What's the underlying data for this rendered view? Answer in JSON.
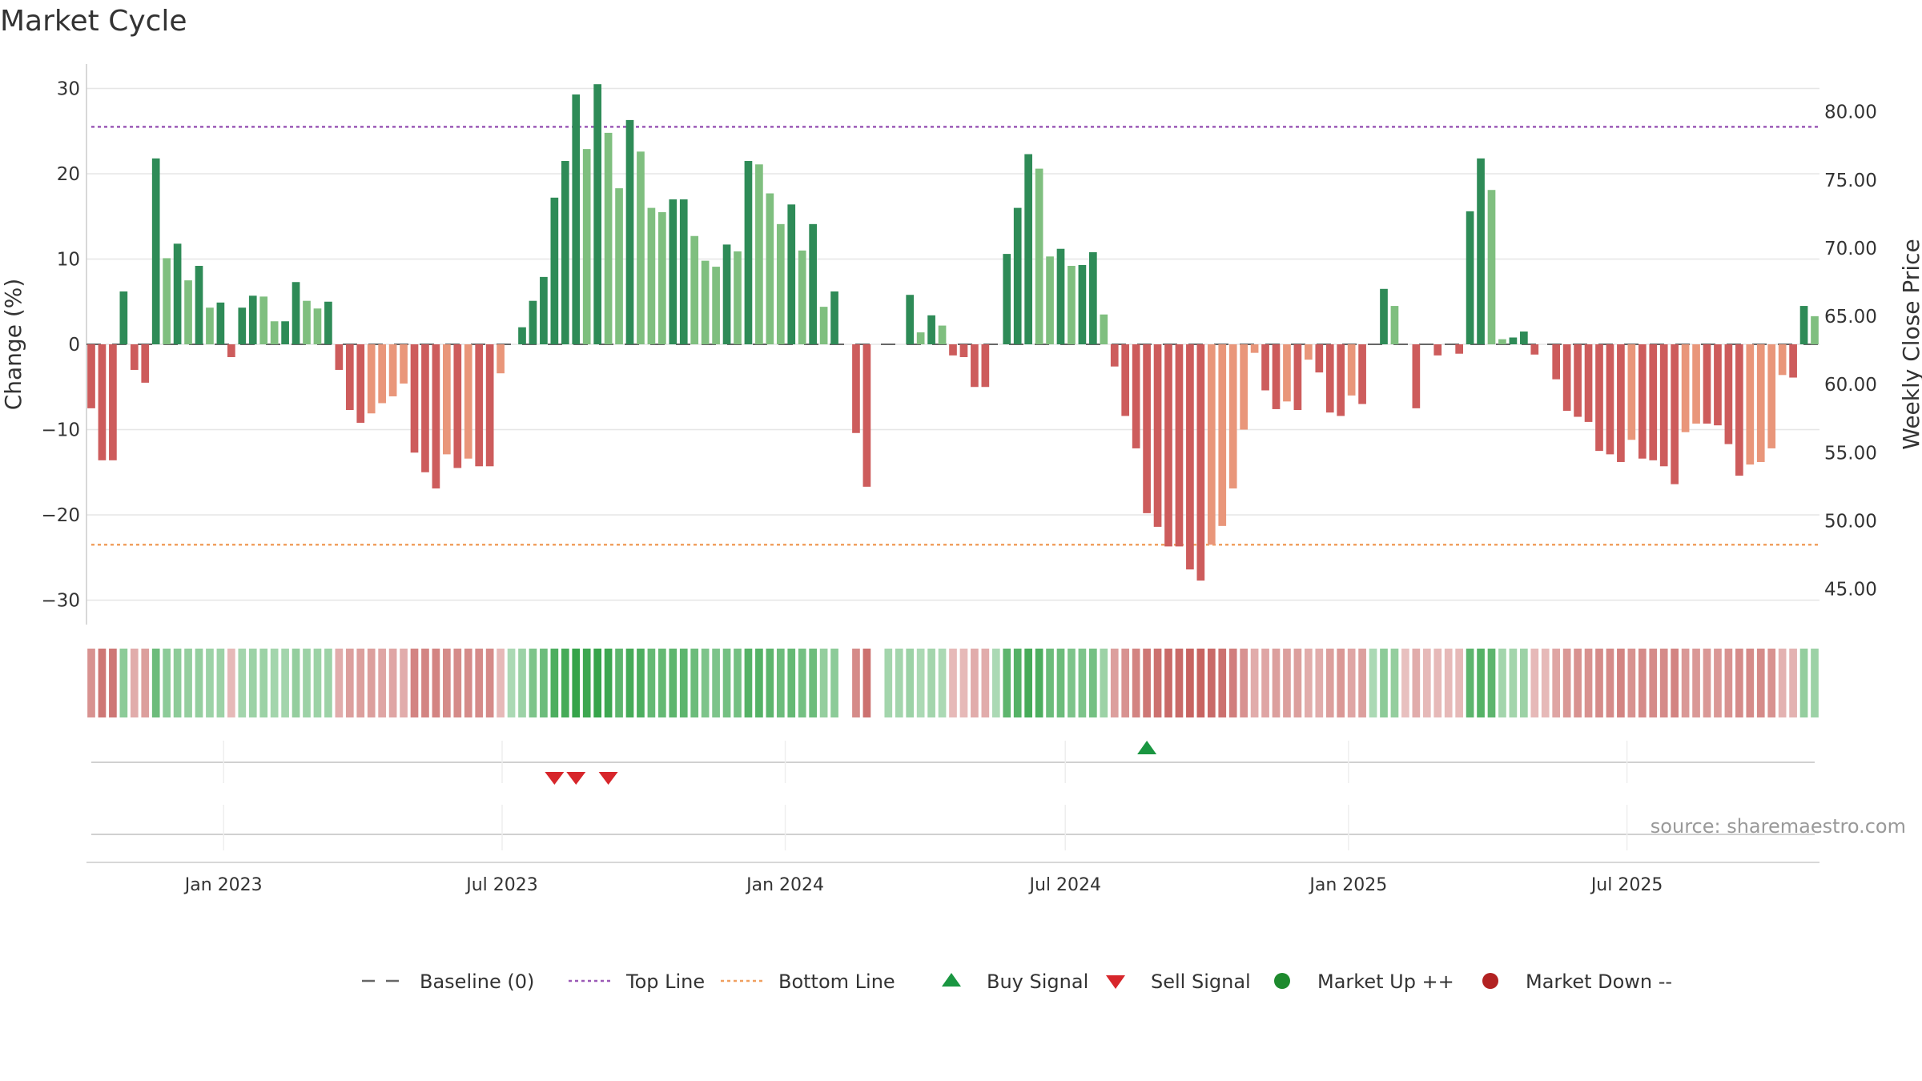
{
  "chart_data": {
    "type": "bar",
    "title": "Market Cycle",
    "ylabel": "Change (%)",
    "y2label": "Weekly Close Price",
    "ylim": [
      -33,
      33
    ],
    "y2lim": [
      42.4,
      83.5
    ],
    "yticks": [
      30,
      20,
      10,
      0,
      -10,
      -20,
      -30
    ],
    "yticklabels": [
      "30",
      "20",
      "10",
      "0",
      "−10",
      "−20",
      "−30"
    ],
    "y2ticks": [
      80,
      75,
      70,
      65,
      60,
      55,
      50,
      45
    ],
    "y2ticklabels": [
      "80.00",
      "75.00",
      "70.00",
      "65.00",
      "60.00",
      "55.00",
      "50.00",
      "45.00"
    ],
    "x_start": "2022-10-07",
    "xticks": [
      "2023-01-01",
      "2023-07-01",
      "2024-01-01",
      "2024-07-01",
      "2025-01-01",
      "2025-07-01"
    ],
    "xticklabels": [
      "Jan 2023",
      "Jul 2023",
      "Jan 2024",
      "Jul 2024",
      "Jan 2025",
      "Jul 2025"
    ],
    "top_line": 25.5,
    "bottom_line": -23.5,
    "baseline": 0,
    "values": [
      -7.5,
      -13.6,
      -13.6,
      6.2,
      -3,
      -4.5,
      21.8,
      10.1,
      11.8,
      7.5,
      9.2,
      4.3,
      4.9,
      -1.5,
      4.3,
      5.7,
      5.6,
      2.7,
      2.7,
      7.3,
      5.1,
      4.2,
      5,
      -3,
      -7.7,
      -9.2,
      -8.1,
      -6.9,
      -6.1,
      -4.6,
      -12.7,
      -15,
      -16.9,
      -12.9,
      -14.5,
      -13.4,
      -14.3,
      -14.3,
      -3.4,
      0,
      2,
      5.1,
      7.9,
      17.2,
      21.5,
      29.3,
      22.9,
      30.5,
      24.8,
      18.3,
      26.3,
      22.6,
      16,
      15.5,
      17,
      17,
      12.7,
      9.8,
      9.1,
      11.7,
      10.9,
      21.5,
      21.1,
      17.7,
      14.1,
      16.4,
      11,
      14.1,
      4.4,
      6.2,
      0,
      -10.4,
      -16.7,
      0,
      0,
      0,
      5.8,
      1.4,
      3.4,
      2.2,
      -1.3,
      -1.5,
      -5,
      -5,
      0,
      10.6,
      16,
      22.3,
      20.6,
      10.3,
      11.2,
      9.2,
      9.3,
      10.8,
      3.5,
      -2.6,
      -8.4,
      -12.2,
      -19.8,
      -21.4,
      -23.7,
      -23.7,
      -26.4,
      -27.7,
      -23.5,
      -21.3,
      -16.9,
      -10,
      -1,
      -5.4,
      -7.6,
      -6.7,
      -7.7,
      -1.8,
      -3.3,
      -8,
      -8.4,
      -6,
      -7,
      0,
      6.5,
      4.5,
      0,
      -7.5,
      0,
      -1.3,
      0,
      -1.1,
      15.6,
      21.8,
      18.1,
      0.6,
      0.8,
      1.5,
      -1.2,
      0,
      -4.1,
      -7.8,
      -8.5,
      -9.1,
      -12.5,
      -12.9,
      -13.8,
      -11.2,
      -13.4,
      -13.6,
      -14.3,
      -16.4,
      -10.3,
      -9.3,
      -9.3,
      -9.5,
      -11.7,
      -15.4,
      -14.1,
      -13.8,
      -12.2,
      -3.6,
      -3.9,
      4.5,
      3.3
    ],
    "regime_strength": [
      -0.5,
      -0.7,
      -0.7,
      0.4,
      -0.3,
      -0.4,
      0.6,
      0.4,
      0.4,
      0.35,
      0.35,
      0.3,
      0.3,
      -0.2,
      0.25,
      0.3,
      0.3,
      0.25,
      0.25,
      0.35,
      0.3,
      0.3,
      0.3,
      -0.3,
      -0.4,
      -0.4,
      -0.4,
      -0.35,
      -0.35,
      -0.3,
      -0.6,
      -0.6,
      -0.6,
      -0.55,
      -0.55,
      -0.55,
      -0.55,
      -0.55,
      -0.2,
      0.2,
      0.3,
      0.5,
      0.6,
      0.8,
      0.85,
      0.95,
      0.9,
      0.95,
      0.9,
      0.7,
      0.85,
      0.8,
      0.65,
      0.65,
      0.7,
      0.7,
      0.6,
      0.5,
      0.5,
      0.55,
      0.55,
      0.75,
      0.75,
      0.7,
      0.6,
      0.65,
      0.55,
      0.6,
      0.35,
      0.4,
      0,
      -0.55,
      -0.75,
      0,
      0.25,
      0.25,
      0.3,
      0.2,
      0.25,
      0.2,
      -0.2,
      -0.2,
      -0.3,
      -0.3,
      0.2,
      0.7,
      0.75,
      0.85,
      0.8,
      0.6,
      0.6,
      0.5,
      0.5,
      0.55,
      0.3,
      -0.4,
      -0.5,
      -0.6,
      -0.7,
      -0.75,
      -0.8,
      -0.8,
      -0.85,
      -0.85,
      -0.8,
      -0.75,
      -0.65,
      -0.5,
      -0.3,
      -0.35,
      -0.4,
      -0.4,
      -0.4,
      -0.3,
      -0.3,
      -0.4,
      -0.45,
      -0.35,
      -0.4,
      0.2,
      0.4,
      0.35,
      -0.15,
      -0.3,
      -0.2,
      -0.2,
      -0.2,
      -0.2,
      0.7,
      0.75,
      0.7,
      0.25,
      0.25,
      0.3,
      -0.2,
      -0.2,
      -0.35,
      -0.45,
      -0.5,
      -0.5,
      -0.55,
      -0.55,
      -0.6,
      -0.5,
      -0.55,
      -0.55,
      -0.55,
      -0.6,
      -0.45,
      -0.45,
      -0.45,
      -0.45,
      -0.5,
      -0.55,
      -0.55,
      -0.55,
      -0.5,
      -0.25,
      -0.25,
      0.35,
      0.3
    ],
    "buy_signals": [
      "2024-08-23"
    ],
    "sell_signals": [
      "2023-08-04",
      "2023-08-18",
      "2023-09-08"
    ],
    "market_up": [],
    "market_down": [],
    "legend": [
      {
        "label": "Baseline (0)",
        "marker": "dash",
        "color": "#666666"
      },
      {
        "label": "Top Line",
        "marker": "dotted",
        "color": "#9b59b6"
      },
      {
        "label": "Bottom Line",
        "marker": "dotted",
        "color": "#f0a060"
      },
      {
        "label": "Buy Signal",
        "marker": "triangle-up",
        "color": "#1a9641"
      },
      {
        "label": "Sell Signal",
        "marker": "triangle-down",
        "color": "#d7262b"
      },
      {
        "label": "Market Up ++",
        "marker": "circle",
        "color": "#1e8a2e"
      },
      {
        "label": "Market Down --",
        "marker": "circle",
        "color": "#b22222"
      }
    ],
    "legend_position": "bottom",
    "grid": true,
    "colors": {
      "up_strong": "#2e8b57",
      "up_weak": "#7fbf7f",
      "down_strong": "#cd5c5c",
      "down_weak": "#e9967a",
      "regime_up": "#2ea043",
      "regime_down": "#c0504d"
    }
  },
  "source_text": "source: sharemaestro.com"
}
